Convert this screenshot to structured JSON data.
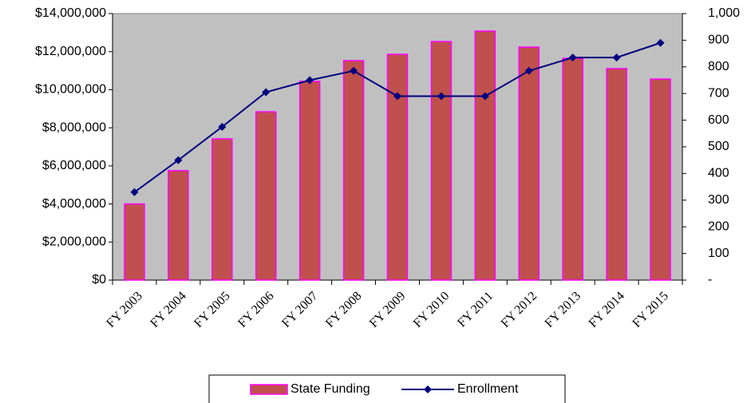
{
  "chart_data": {
    "type": "bar_line",
    "categories": [
      "FY 2003",
      "FY 2004",
      "FY 2005",
      "FY 2006",
      "FY 2007",
      "FY 2008",
      "FY 2009",
      "FY 2010",
      "FY 2011",
      "FY 2012",
      "FY 2013",
      "FY 2014",
      "FY 2015"
    ],
    "series": [
      {
        "name": "State Funding",
        "type": "bar",
        "color": "#c0504d",
        "edgecolor": "#ff00ff",
        "axis": "y",
        "values": [
          4000000,
          5750000,
          7420000,
          8840000,
          10440000,
          11530000,
          11860000,
          12530000,
          13080000,
          12240000,
          11650000,
          11110000,
          10560000
        ]
      },
      {
        "name": "Enrollment",
        "type": "line",
        "color": "#000080",
        "axis": "y2",
        "values": [
          330,
          450,
          575,
          705,
          750,
          785,
          690,
          690,
          690,
          785,
          835,
          835,
          890
        ]
      }
    ],
    "ylim": [
      0,
      14000000
    ],
    "yticks": [
      {
        "value": 0,
        "label": "$0"
      },
      {
        "value": 2000000,
        "label": "$2,000,000"
      },
      {
        "value": 4000000,
        "label": "$4,000,000"
      },
      {
        "value": 6000000,
        "label": "$6,000,000"
      },
      {
        "value": 8000000,
        "label": "$8,000,000"
      },
      {
        "value": 10000000,
        "label": "$10,000,000"
      },
      {
        "value": 12000000,
        "label": "$12,000,000"
      },
      {
        "value": 14000000,
        "label": "$14,000,000"
      }
    ],
    "y2lim": [
      0,
      1000
    ],
    "y2ticks": [
      {
        "value": 0,
        "label": "-"
      },
      100,
      200,
      300,
      400,
      500,
      600,
      700,
      800,
      900,
      {
        "value": 1000,
        "label": "1,000"
      }
    ],
    "plot_background": "#c0c0c0",
    "legend_position": "bottom"
  }
}
